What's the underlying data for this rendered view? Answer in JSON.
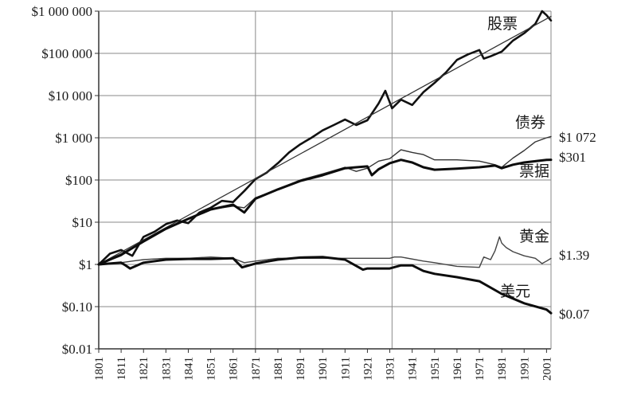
{
  "chart_data": {
    "type": "line",
    "title": "",
    "xlabel": "",
    "ylabel": "",
    "y_scale": "log",
    "ylim": [
      0.01,
      1000000
    ],
    "xlim": [
      1801,
      2003
    ],
    "grid": true,
    "y_tick_values": [
      0.01,
      0.1,
      1,
      10,
      100,
      1000,
      10000,
      100000,
      1000000
    ],
    "y_tick_labels": [
      "$0.01",
      "$0.10",
      "$1",
      "$10",
      "$100",
      "$1 000",
      "$10 000",
      "$100 000",
      "$1 000 000"
    ],
    "x_tick_labels": [
      "1801",
      "1811",
      "1821",
      "1831",
      "1841",
      "1851",
      "1861",
      "1871",
      "1881",
      "1891",
      "1901",
      "1911",
      "1921",
      "1931",
      "1941",
      "1951",
      "1961",
      "1971",
      "1981",
      "1991",
      "2001"
    ],
    "x_grid_years": [
      1871,
      1932
    ],
    "series": [
      {
        "name": "股票",
        "color": "#111111",
        "style": "bold-jagged",
        "end_label": "",
        "x": [
          1801,
          1806,
          1811,
          1816,
          1821,
          1826,
          1831,
          1836,
          1841,
          1846,
          1851,
          1856,
          1861,
          1866,
          1871,
          1876,
          1881,
          1886,
          1891,
          1896,
          1901,
          1906,
          1911,
          1916,
          1921,
          1926,
          1929,
          1932,
          1936,
          1941,
          1946,
          1951,
          1956,
          1961,
          1966,
          1971,
          1973,
          1976,
          1981,
          1986,
          1991,
          1996,
          1999,
          2001,
          2003
        ],
        "values": [
          1,
          1.8,
          2.2,
          1.6,
          4.5,
          6,
          9,
          11,
          9.5,
          17,
          22,
          32,
          30,
          55,
          105,
          150,
          250,
          450,
          700,
          1000,
          1500,
          2000,
          2700,
          2000,
          2600,
          6500,
          13000,
          5000,
          8000,
          6000,
          12000,
          20000,
          35000,
          70000,
          95000,
          120000,
          75000,
          85000,
          110000,
          200000,
          300000,
          500000,
          1000000,
          800000,
          600000
        ]
      },
      {
        "name": "",
        "color": "#333333",
        "style": "thin-trend",
        "end_label": "",
        "x": [
          1801,
          2003
        ],
        "values": [
          1,
          750000
        ]
      },
      {
        "name": "债券",
        "color": "#333333",
        "style": "thin",
        "end_label": "$1 072",
        "x": [
          1801,
          1811,
          1821,
          1831,
          1841,
          1851,
          1861,
          1866,
          1871,
          1881,
          1891,
          1901,
          1911,
          1916,
          1921,
          1926,
          1931,
          1936,
          1941,
          1946,
          1951,
          1961,
          1971,
          1978,
          1981,
          1986,
          1991,
          1996,
          2001,
          2003
        ],
        "values": [
          1,
          1.6,
          3.5,
          7,
          12,
          20,
          24,
          22,
          38,
          60,
          100,
          140,
          200,
          160,
          190,
          280,
          320,
          520,
          450,
          400,
          300,
          300,
          280,
          230,
          200,
          330,
          500,
          800,
          1000,
          1072
        ]
      },
      {
        "name": "票据",
        "color": "#0d0d0d",
        "style": "bold",
        "end_label": "$301",
        "x": [
          1801,
          1811,
          1821,
          1831,
          1841,
          1851,
          1861,
          1866,
          1871,
          1881,
          1891,
          1901,
          1911,
          1916,
          1921,
          1923,
          1926,
          1931,
          1936,
          1941,
          1946,
          1951,
          1961,
          1971,
          1978,
          1981,
          1986,
          1991,
          2001,
          2003
        ],
        "values": [
          1,
          1.7,
          3.5,
          7,
          12,
          20,
          26,
          17,
          36,
          60,
          95,
          130,
          190,
          200,
          210,
          130,
          180,
          250,
          300,
          260,
          200,
          175,
          185,
          200,
          220,
          190,
          230,
          260,
          300,
          301
        ]
      },
      {
        "name": "黄金",
        "color": "#444444",
        "style": "thin",
        "end_label": "$1.39",
        "x": [
          1801,
          1811,
          1816,
          1821,
          1831,
          1841,
          1851,
          1861,
          1866,
          1871,
          1881,
          1901,
          1921,
          1931,
          1933,
          1936,
          1946,
          1951,
          1961,
          1971,
          1973,
          1976,
          1978,
          1980,
          1981,
          1983,
          1986,
          1991,
          1996,
          1999,
          2001,
          2003
        ],
        "values": [
          1,
          1.1,
          1.2,
          1.3,
          1.4,
          1.4,
          1.5,
          1.4,
          1.1,
          1.2,
          1.4,
          1.4,
          1.4,
          1.4,
          1.5,
          1.5,
          1.2,
          1.1,
          0.9,
          0.85,
          1.5,
          1.3,
          2.1,
          4.5,
          3.2,
          2.5,
          2.0,
          1.6,
          1.4,
          1.05,
          1.2,
          1.39
        ]
      },
      {
        "name": "美元",
        "color": "#0d0d0d",
        "style": "bold",
        "end_label": "$0.07",
        "x": [
          1801,
          1811,
          1813,
          1815,
          1821,
          1831,
          1841,
          1851,
          1861,
          1865,
          1871,
          1881,
          1891,
          1901,
          1911,
          1919,
          1921,
          1931,
          1936,
          1941,
          1946,
          1951,
          1961,
          1971,
          1981,
          1991,
          2001,
          2003
        ],
        "values": [
          1,
          1.1,
          0.95,
          0.8,
          1.1,
          1.3,
          1.35,
          1.35,
          1.4,
          0.85,
          1.05,
          1.3,
          1.45,
          1.5,
          1.3,
          0.75,
          0.8,
          0.8,
          0.95,
          0.95,
          0.7,
          0.6,
          0.5,
          0.4,
          0.2,
          0.12,
          0.085,
          0.07
        ]
      }
    ]
  }
}
